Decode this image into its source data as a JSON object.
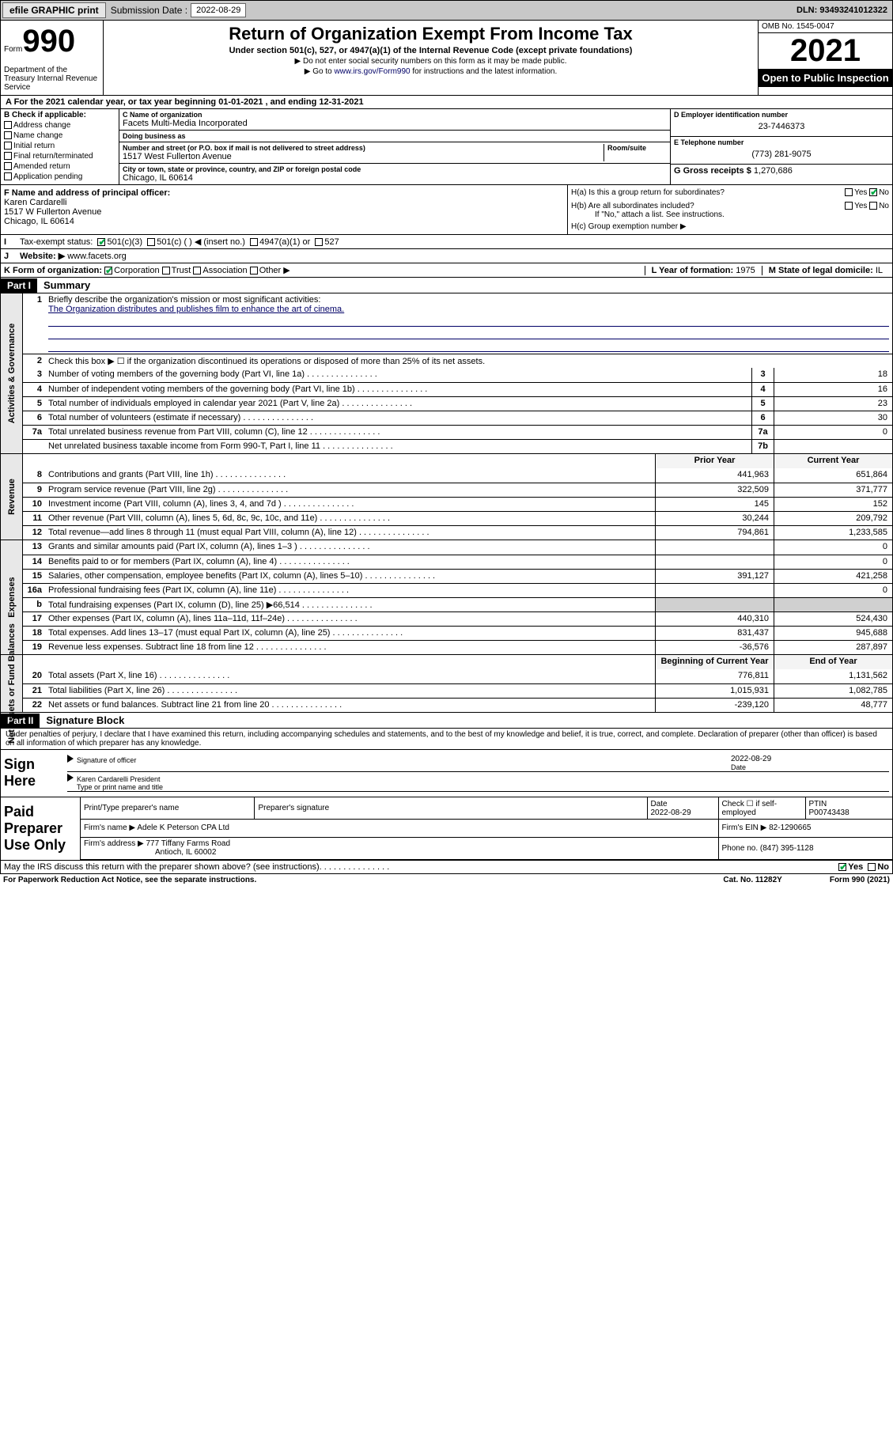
{
  "topbar": {
    "efile": "efile GRAPHIC print",
    "submission_label": "Submission Date :",
    "submission_date": "2022-08-29",
    "dln": "DLN: 93493241012322"
  },
  "header": {
    "form_word": "Form",
    "form_number": "990",
    "dept": "Department of the Treasury\nInternal Revenue Service",
    "title": "Return of Organization Exempt From Income Tax",
    "subtitle": "Under section 501(c), 527, or 4947(a)(1) of the Internal Revenue Code (except private foundations)",
    "note1": "▶ Do not enter social security numbers on this form as it may be made public.",
    "note2_pre": "▶ Go to ",
    "note2_link": "www.irs.gov/Form990",
    "note2_post": " for instructions and the latest information.",
    "omb": "OMB No. 1545-0047",
    "year": "2021",
    "inspect": "Open to Public Inspection"
  },
  "period": "A For the 2021 calendar year, or tax year beginning 01-01-2021  , and ending 12-31-2021",
  "section_b": {
    "label": "B Check if applicable:",
    "items": [
      "Address change",
      "Name change",
      "Initial return",
      "Final return/terminated",
      "Amended return",
      "Application pending"
    ]
  },
  "section_c": {
    "name_lbl": "C Name of organization",
    "name": "Facets Multi-Media Incorporated",
    "dba_lbl": "Doing business as",
    "dba": "",
    "addr_lbl": "Number and street (or P.O. box if mail is not delivered to street address)",
    "room_lbl": "Room/suite",
    "address": "1517 West Fullerton Avenue",
    "city_lbl": "City or town, state or province, country, and ZIP or foreign postal code",
    "city": "Chicago, IL  60614"
  },
  "section_d": {
    "ein_lbl": "D Employer identification number",
    "ein": "23-7446373",
    "phone_lbl": "E Telephone number",
    "phone": "(773) 281-9075",
    "gross_lbl": "G Gross receipts $",
    "gross": "1,270,686"
  },
  "section_f": {
    "lbl": "F Name and address of principal officer:",
    "name": "Karen Cardarelli",
    "addr": "1517 W Fullerton Avenue",
    "city": "Chicago, IL  60614"
  },
  "section_h": {
    "ha": "H(a)  Is this a group return for subordinates?",
    "hb": "H(b)  Are all subordinates included?",
    "hb_note": "If \"No,\" attach a list. See instructions.",
    "hc": "H(c)  Group exemption number ▶"
  },
  "section_i": {
    "lbl": "Tax-exempt status:",
    "opt1": "501(c)(3)",
    "opt2": "501(c) (  ) ◀ (insert no.)",
    "opt3": "4947(a)(1) or",
    "opt4": "527"
  },
  "section_j": {
    "lbl": "Website: ▶",
    "val": "www.facets.org"
  },
  "section_k": {
    "lbl": "K Form of organization:",
    "opts": [
      "Corporation",
      "Trust",
      "Association",
      "Other ▶"
    ]
  },
  "section_l": {
    "lbl": "L Year of formation:",
    "val": "1975"
  },
  "section_m": {
    "lbl": "M State of legal domicile:",
    "val": "IL"
  },
  "part1": {
    "hdr": "Part I",
    "title": "Summary",
    "mission_lbl": "Briefly describe the organization's mission or most significant activities:",
    "mission": "The Organization distributes and publishes film to enhance the art of cinema.",
    "line2": "Check this box ▶ ☐ if the organization discontinued its operations or disposed of more than 25% of its net assets.",
    "rows_gov": [
      {
        "n": "3",
        "t": "Number of voting members of the governing body (Part VI, line 1a)",
        "k": "3",
        "v": "18"
      },
      {
        "n": "4",
        "t": "Number of independent voting members of the governing body (Part VI, line 1b)",
        "k": "4",
        "v": "16"
      },
      {
        "n": "5",
        "t": "Total number of individuals employed in calendar year 2021 (Part V, line 2a)",
        "k": "5",
        "v": "23"
      },
      {
        "n": "6",
        "t": "Total number of volunteers (estimate if necessary)",
        "k": "6",
        "v": "30"
      },
      {
        "n": "7a",
        "t": "Total unrelated business revenue from Part VIII, column (C), line 12",
        "k": "7a",
        "v": "0"
      },
      {
        "n": "",
        "t": "Net unrelated business taxable income from Form 990-T, Part I, line 11",
        "k": "7b",
        "v": ""
      }
    ],
    "col_hdr_prior": "Prior Year",
    "col_hdr_current": "Current Year",
    "rows_rev": [
      {
        "n": "8",
        "t": "Contributions and grants (Part VIII, line 1h)",
        "p": "441,963",
        "c": "651,864"
      },
      {
        "n": "9",
        "t": "Program service revenue (Part VIII, line 2g)",
        "p": "322,509",
        "c": "371,777"
      },
      {
        "n": "10",
        "t": "Investment income (Part VIII, column (A), lines 3, 4, and 7d )",
        "p": "145",
        "c": "152"
      },
      {
        "n": "11",
        "t": "Other revenue (Part VIII, column (A), lines 5, 6d, 8c, 9c, 10c, and 11e)",
        "p": "30,244",
        "c": "209,792"
      },
      {
        "n": "12",
        "t": "Total revenue—add lines 8 through 11 (must equal Part VIII, column (A), line 12)",
        "p": "794,861",
        "c": "1,233,585"
      }
    ],
    "rows_exp": [
      {
        "n": "13",
        "t": "Grants and similar amounts paid (Part IX, column (A), lines 1–3 )",
        "p": "",
        "c": "0"
      },
      {
        "n": "14",
        "t": "Benefits paid to or for members (Part IX, column (A), line 4)",
        "p": "",
        "c": "0"
      },
      {
        "n": "15",
        "t": "Salaries, other compensation, employee benefits (Part IX, column (A), lines 5–10)",
        "p": "391,127",
        "c": "421,258"
      },
      {
        "n": "16a",
        "t": "Professional fundraising fees (Part IX, column (A), line 11e)",
        "p": "",
        "c": "0"
      },
      {
        "n": "b",
        "t": "Total fundraising expenses (Part IX, column (D), line 25) ▶66,514",
        "p": "GREY",
        "c": "GREY"
      },
      {
        "n": "17",
        "t": "Other expenses (Part IX, column (A), lines 11a–11d, 11f–24e)",
        "p": "440,310",
        "c": "524,430"
      },
      {
        "n": "18",
        "t": "Total expenses. Add lines 13–17 (must equal Part IX, column (A), line 25)",
        "p": "831,437",
        "c": "945,688"
      },
      {
        "n": "19",
        "t": "Revenue less expenses. Subtract line 18 from line 12",
        "p": "-36,576",
        "c": "287,897"
      }
    ],
    "col_hdr_begin": "Beginning of Current Year",
    "col_hdr_end": "End of Year",
    "rows_net": [
      {
        "n": "20",
        "t": "Total assets (Part X, line 16)",
        "p": "776,811",
        "c": "1,131,562"
      },
      {
        "n": "21",
        "t": "Total liabilities (Part X, line 26)",
        "p": "1,015,931",
        "c": "1,082,785"
      },
      {
        "n": "22",
        "t": "Net assets or fund balances. Subtract line 21 from line 20",
        "p": "-239,120",
        "c": "48,777"
      }
    ],
    "side_gov": "Activities & Governance",
    "side_rev": "Revenue",
    "side_exp": "Expenses",
    "side_net": "Net Assets or Fund Balances"
  },
  "part2": {
    "hdr": "Part II",
    "title": "Signature Block",
    "decl": "Under penalties of perjury, I declare that I have examined this return, including accompanying schedules and statements, and to the best of my knowledge and belief, it is true, correct, and complete. Declaration of preparer (other than officer) is based on all information of which preparer has any knowledge.",
    "sign_here": "Sign Here",
    "sig_officer": "Signature of officer",
    "sig_date": "2022-08-29",
    "date_lbl": "Date",
    "name_title": "Karen Cardarelli  President",
    "name_title_lbl": "Type or print name and title",
    "paid_lbl": "Paid Preparer Use Only",
    "prep_name_lbl": "Print/Type preparer's name",
    "prep_sig_lbl": "Preparer's signature",
    "prep_date_lbl": "Date",
    "prep_date": "2022-08-29",
    "check_if": "Check ☐ if self-employed",
    "ptin_lbl": "PTIN",
    "ptin": "P00743438",
    "firm_name_lbl": "Firm's name  ▶",
    "firm_name": "Adele K Peterson CPA Ltd",
    "firm_ein_lbl": "Firm's EIN ▶",
    "firm_ein": "82-1290665",
    "firm_addr_lbl": "Firm's address ▶",
    "firm_addr": "777 Tiffany Farms Road",
    "firm_city": "Antioch, IL  60002",
    "firm_phone_lbl": "Phone no.",
    "firm_phone": "(847) 395-1128",
    "discuss": "May the IRS discuss this return with the preparer shown above? (see instructions)"
  },
  "footer": {
    "pra": "For Paperwork Reduction Act Notice, see the separate instructions.",
    "cat": "Cat. No. 11282Y",
    "form": "Form 990 (2021)"
  }
}
